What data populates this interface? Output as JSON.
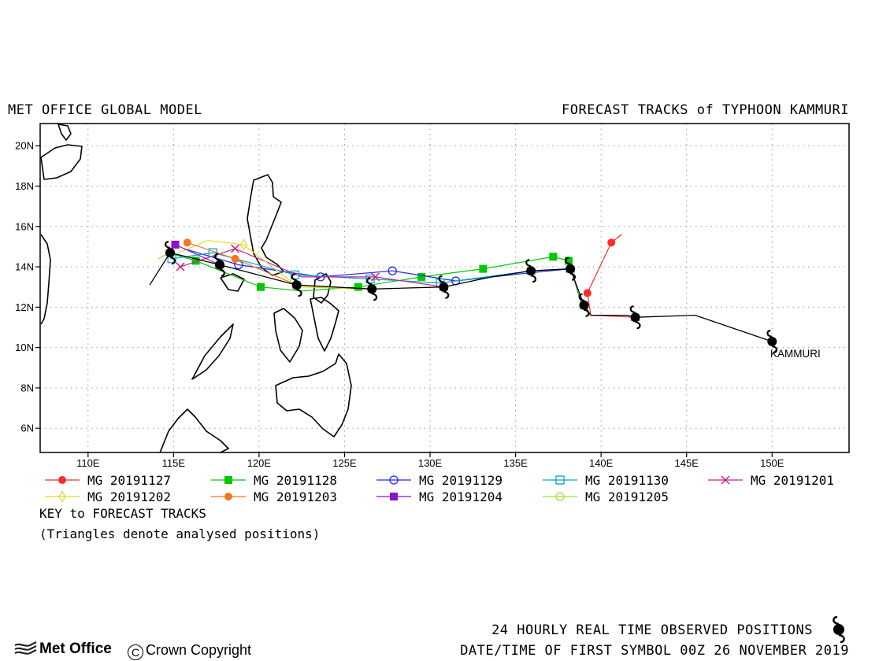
{
  "title_left": "MET OFFICE GLOBAL MODEL",
  "title_right": "FORECAST TRACKS of TYPHOON KAMMURI",
  "map": {
    "lat_labels": [
      "6N",
      "8N",
      "10N",
      "12N",
      "14N",
      "16N",
      "18N",
      "20N"
    ],
    "lat_values": [
      6,
      8,
      10,
      12,
      14,
      16,
      18,
      20
    ],
    "lon_labels": [
      "110E",
      "115E",
      "120E",
      "125E",
      "130E",
      "135E",
      "140E",
      "145E",
      "150E"
    ],
    "lon_values": [
      110,
      115,
      120,
      125,
      130,
      135,
      140,
      145,
      150
    ],
    "lon_range": [
      107.2,
      154.5
    ],
    "lat_range": [
      4.8,
      21.1
    ],
    "storm_label": "KAMMURI",
    "observed_track": [
      [
        150,
        10.3
      ],
      [
        145.5,
        11.6
      ],
      [
        142,
        11.5
      ],
      [
        141.5,
        11.6
      ],
      [
        139.4,
        11.6
      ],
      [
        139,
        12.1
      ],
      [
        138.2,
        13.9
      ],
      [
        135.9,
        13.8
      ],
      [
        133.6,
        13.5
      ],
      [
        130.8,
        13.0
      ],
      [
        126.6,
        12.9
      ],
      [
        122.2,
        13.1
      ],
      [
        117.7,
        14.1
      ],
      [
        114.8,
        14.7
      ],
      [
        113.6,
        13.1
      ]
    ],
    "observed_symbols": [
      [
        150,
        10.3
      ],
      [
        142,
        11.5
      ],
      [
        139,
        12.1
      ],
      [
        138.2,
        13.9
      ],
      [
        135.9,
        13.8
      ],
      [
        130.8,
        13.0
      ],
      [
        126.6,
        12.9
      ],
      [
        122.2,
        13.1
      ],
      [
        117.7,
        14.1
      ],
      [
        114.8,
        14.7
      ]
    ]
  },
  "legend": {
    "title": "KEY to FORECAST TRACKS",
    "note": "(Triangles denote analysed positions)",
    "entries": [
      {
        "label": "MG 20191127",
        "color": "#ff2a2a",
        "marker": "circle-filled"
      },
      {
        "label": "MG 20191128",
        "color": "#00c800",
        "marker": "square-filled"
      },
      {
        "label": "MG 20191129",
        "color": "#2424e6",
        "marker": "circle-open"
      },
      {
        "label": "MG 20191130",
        "color": "#00a8c8",
        "marker": "square-open"
      },
      {
        "label": "MG 20191201",
        "color": "#c8208c",
        "marker": "cross"
      },
      {
        "label": "MG 20191202",
        "color": "#dcdc28",
        "marker": "diamond-open"
      },
      {
        "label": "MG 20191203",
        "color": "#f07820",
        "marker": "circle-filled"
      },
      {
        "label": "MG 20191204",
        "color": "#8c14c8",
        "marker": "square-filled"
      },
      {
        "label": "MG 20191205",
        "color": "#a0dc3c",
        "marker": "circle-open"
      }
    ]
  },
  "forecast_tracks": [
    {
      "label": "MG 20191127",
      "points": [
        [
          142,
          11.5
        ],
        [
          139.4,
          11.6
        ],
        [
          139.2,
          12.7
        ],
        [
          140.6,
          15.2
        ],
        [
          141.2,
          15.6
        ]
      ],
      "marker_points": [
        [
          139.2,
          12.7
        ],
        [
          140.6,
          15.2
        ]
      ]
    },
    {
      "label": "MG 20191128",
      "points": [
        [
          139,
          12.1
        ],
        [
          138.9,
          12.0
        ],
        [
          138.1,
          14.3
        ],
        [
          137.2,
          14.5
        ],
        [
          133.1,
          13.9
        ],
        [
          129.5,
          13.5
        ],
        [
          125.8,
          13.0
        ],
        [
          122.5,
          12.8
        ],
        [
          120.1,
          13.0
        ],
        [
          116.3,
          14.3
        ],
        [
          115.1,
          14.6
        ]
      ],
      "marker_points": [
        [
          138.1,
          14.3
        ],
        [
          137.2,
          14.5
        ],
        [
          133.1,
          13.9
        ],
        [
          129.5,
          13.5
        ],
        [
          125.8,
          13.0
        ],
        [
          120.1,
          13.0
        ],
        [
          116.3,
          14.3
        ]
      ]
    },
    {
      "label": "MG 20191129",
      "points": [
        [
          138.2,
          13.9
        ],
        [
          135.8,
          13.7
        ],
        [
          131.5,
          13.3
        ],
        [
          127.8,
          13.8
        ],
        [
          123.6,
          13.5
        ],
        [
          118.8,
          14.1
        ],
        [
          115.6,
          14.9
        ]
      ],
      "marker_points": [
        [
          131.5,
          13.3
        ],
        [
          127.8,
          13.8
        ],
        [
          123.6,
          13.5
        ],
        [
          118.8,
          14.1
        ]
      ]
    },
    {
      "label": "MG 20191130",
      "points": [
        [
          135.9,
          13.8
        ],
        [
          130.6,
          13.2
        ],
        [
          126.5,
          13.4
        ],
        [
          122.1,
          13.6
        ],
        [
          117.3,
          14.7
        ],
        [
          114.9,
          14.4
        ]
      ],
      "marker_points": [
        [
          130.6,
          13.2
        ],
        [
          126.5,
          13.4
        ],
        [
          122.1,
          13.6
        ],
        [
          117.3,
          14.7
        ],
        [
          114.9,
          14.4
        ]
      ]
    },
    {
      "label": "MG 20191201",
      "points": [
        [
          130.8,
          13.0
        ],
        [
          126.8,
          13.5
        ],
        [
          122.5,
          13.5
        ],
        [
          118.6,
          14.9
        ],
        [
          115.4,
          14.0
        ]
      ],
      "marker_points": [
        [
          126.8,
          13.5
        ],
        [
          118.6,
          14.9
        ],
        [
          115.4,
          14.0
        ]
      ]
    },
    {
      "label": "MG 20191202",
      "points": [
        [
          126.6,
          12.9
        ],
        [
          122.3,
          13.0
        ],
        [
          119.1,
          15.1
        ],
        [
          117,
          15.3
        ],
        [
          115.3,
          14.7
        ]
      ],
      "marker_points": [
        [
          119.1,
          15.1
        ]
      ]
    },
    {
      "label": "MG 20191203",
      "points": [
        [
          122.2,
          13.1
        ],
        [
          118.6,
          14.4
        ],
        [
          115.8,
          15.2
        ]
      ],
      "marker_points": [
        [
          118.6,
          14.4
        ],
        [
          115.8,
          15.2
        ]
      ]
    },
    {
      "label": "MG 20191204",
      "points": [
        [
          117.7,
          14.1
        ],
        [
          115.1,
          15.1
        ]
      ],
      "marker_points": [
        [
          115.1,
          15.1
        ]
      ]
    },
    {
      "label": "MG 20191205",
      "points": [
        [
          114.8,
          14.7
        ],
        [
          114.1,
          14.4
        ]
      ],
      "marker_points": []
    }
  ],
  "footer": {
    "observed_note": "24 HOURLY REAL TIME OBSERVED POSITIONS",
    "first_symbol": "DATE/TIME OF FIRST SYMBOL 00Z 26 NOVEMBER 2019",
    "logo_text": "Met Office",
    "copyright_symbol": "C",
    "copyright_text": "Crown Copyright"
  }
}
